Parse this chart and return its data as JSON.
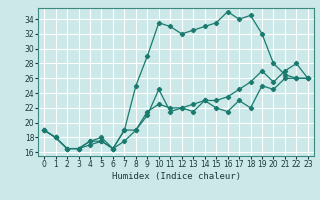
{
  "xlabel": "Humidex (Indice chaleur)",
  "ylabel": "",
  "bg_color": "#cce8e8",
  "grid_color": "#ffffff",
  "line_color": "#1a7a6e",
  "xlim": [
    -0.5,
    23.5
  ],
  "ylim": [
    15.5,
    35.5
  ],
  "xticks": [
    0,
    1,
    2,
    3,
    4,
    5,
    6,
    7,
    8,
    9,
    10,
    11,
    12,
    13,
    14,
    15,
    16,
    17,
    18,
    19,
    20,
    21,
    22,
    23
  ],
  "yticks": [
    16,
    18,
    20,
    22,
    24,
    26,
    28,
    30,
    32,
    34
  ],
  "line1_x": [
    0,
    1,
    2,
    3,
    4,
    5,
    6,
    7,
    8,
    9,
    10,
    11,
    12,
    13,
    14,
    15,
    16,
    17,
    18,
    19,
    20,
    21,
    22,
    23
  ],
  "line1_y": [
    19,
    18,
    16.5,
    16.5,
    17,
    17.5,
    16.5,
    19,
    19,
    21,
    24.5,
    21.5,
    22,
    21.5,
    23,
    22,
    21.5,
    23,
    22,
    25,
    24.5,
    26,
    26,
    26
  ],
  "line2_x": [
    0,
    1,
    2,
    3,
    4,
    5,
    6,
    7,
    8,
    9,
    10,
    11,
    12,
    13,
    14,
    15,
    16,
    17,
    18,
    19,
    20,
    21,
    22,
    23
  ],
  "line2_y": [
    19,
    18,
    16.5,
    16.5,
    17.5,
    17.5,
    16.5,
    19,
    25,
    29,
    33.5,
    33,
    32,
    32.5,
    33,
    33.5,
    35,
    34,
    34.5,
    32,
    28,
    26.5,
    26,
    26
  ],
  "line3_x": [
    0,
    1,
    2,
    3,
    4,
    5,
    6,
    7,
    8,
    9,
    10,
    11,
    12,
    13,
    14,
    15,
    16,
    17,
    18,
    19,
    20,
    21,
    22,
    23
  ],
  "line3_y": [
    19,
    18,
    16.5,
    16.5,
    17.5,
    18,
    16.5,
    17.5,
    19,
    21.5,
    22.5,
    22,
    22,
    22.5,
    23,
    23,
    23.5,
    24.5,
    25.5,
    27,
    25.5,
    27,
    28,
    26
  ],
  "tick_fontsize": 5.5,
  "xlabel_fontsize": 6.5
}
